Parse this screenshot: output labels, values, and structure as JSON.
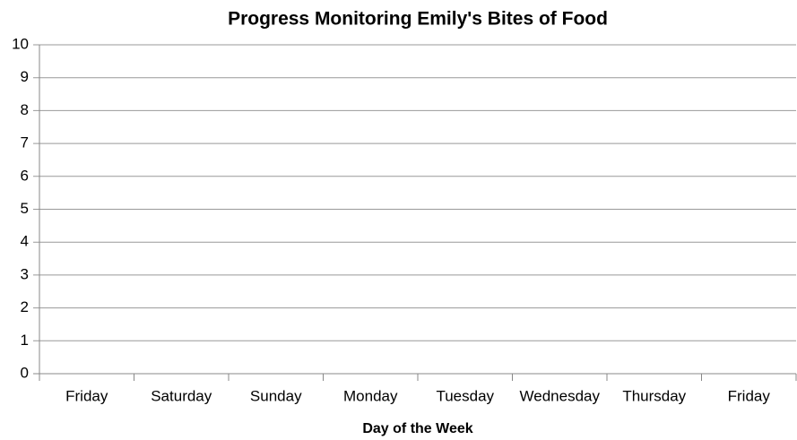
{
  "chart_data": {
    "type": "line",
    "title": "Progress Monitoring Emily's Bites of Food",
    "xlabel": "Day of the Week",
    "categories": [
      "Friday",
      "Saturday",
      "Sunday",
      "Monday",
      "Tuesday",
      "Wednesday",
      "Thursday",
      "Friday"
    ],
    "series": [],
    "ylim": [
      0,
      10
    ],
    "yticks": [
      0,
      1,
      2,
      3,
      4,
      5,
      6,
      7,
      8,
      9,
      10
    ],
    "grid": true
  }
}
